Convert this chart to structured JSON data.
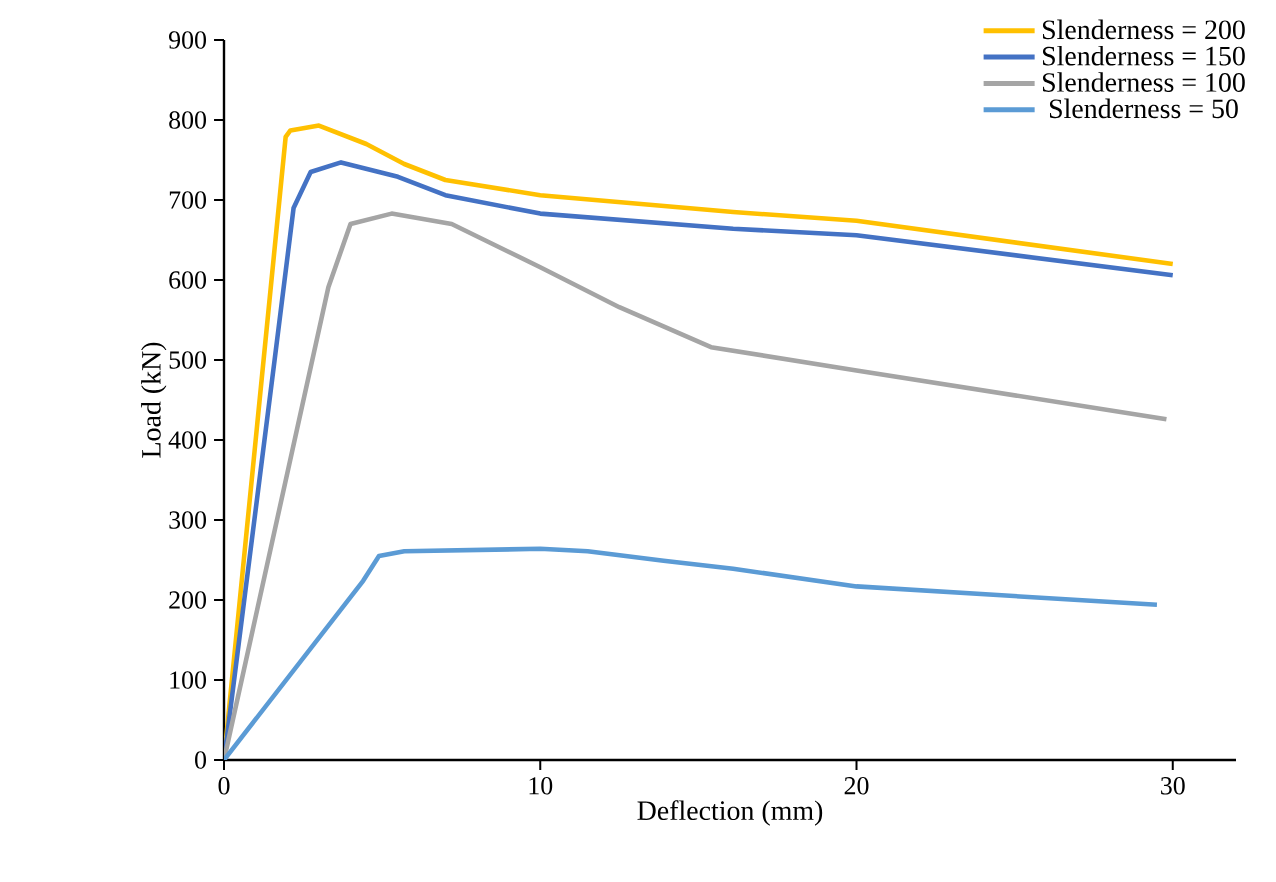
{
  "chart_data": {
    "type": "line",
    "xlabel": "Deflection (mm)",
    "ylabel": "Load (kN)",
    "xlim": [
      0,
      32
    ],
    "xticks": [
      0,
      10,
      20,
      30
    ],
    "ylim": [
      0,
      900
    ],
    "yticks": [
      0,
      100,
      200,
      300,
      400,
      500,
      600,
      700,
      800,
      900
    ],
    "grid": false,
    "legend": "top right",
    "marker": "none",
    "line_style": "solid",
    "series": [
      {
        "name": "Slenderness = 200",
        "color": "#FFC000",
        "x": [
          0,
          1.95,
          2.1,
          3.0,
          4.5,
          5.7,
          7.0,
          10,
          16.1,
          20,
          30
        ],
        "values": [
          0,
          779,
          787,
          793,
          770,
          745,
          725,
          706,
          685,
          674,
          620
        ]
      },
      {
        "name": "Slenderness = 150",
        "color": "#4472C4",
        "x": [
          0,
          1.6,
          2.2,
          2.74,
          3.7,
          5.5,
          7.0,
          10,
          16.1,
          20,
          30
        ],
        "values": [
          0,
          500,
          690,
          735,
          747,
          729,
          706,
          683,
          664,
          656,
          606
        ]
      },
      {
        "name": "Slenderness = 100",
        "color": "#A5A5A5",
        "x": [
          0,
          3.3,
          4.0,
          5.3,
          7.2,
          10,
          12.5,
          15.4,
          20,
          29.8
        ],
        "values": [
          0,
          591,
          670,
          683,
          670,
          616,
          566,
          516,
          487,
          426
        ]
      },
      {
        "name": "Slenderness = 50",
        "color": "#5B9BD5",
        "x": [
          0,
          4.4,
          4.9,
          5.7,
          10,
          11.5,
          13.9,
          16.1,
          20,
          29.5
        ],
        "values": [
          0,
          224,
          255,
          261,
          264,
          261,
          249,
          239,
          217,
          194
        ]
      }
    ]
  }
}
